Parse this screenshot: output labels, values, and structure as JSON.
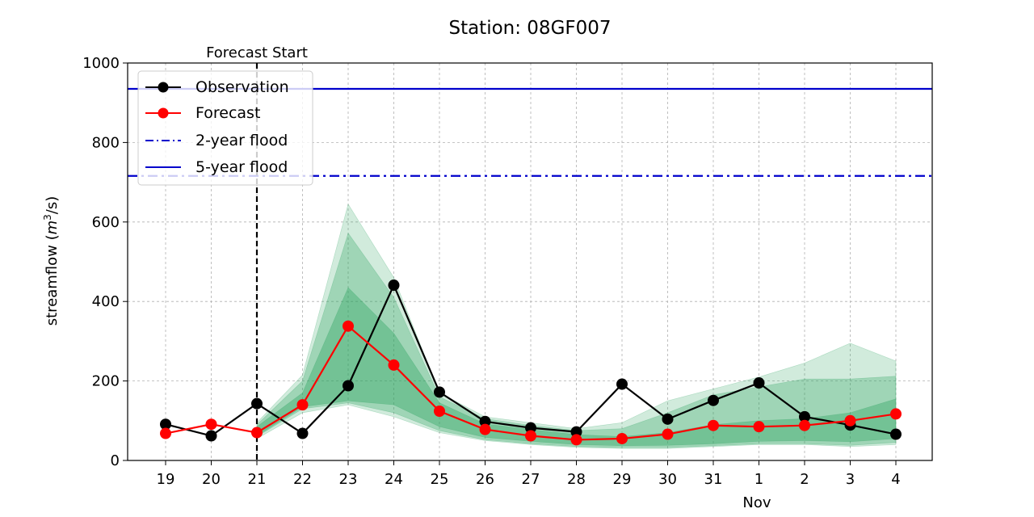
{
  "chart_data": {
    "type": "line",
    "title": "Station: 08GF007",
    "xlabel": "Nov",
    "ylabel_main": "streamflow (",
    "ylabel_unit_base": "m",
    "ylabel_unit_exp": "3",
    "ylabel_unit_tail": "/s)",
    "ylim": [
      0,
      1000
    ],
    "yticks": [
      0,
      200,
      400,
      600,
      800,
      1000
    ],
    "categories": [
      "19",
      "20",
      "21",
      "22",
      "23",
      "24",
      "25",
      "26",
      "27",
      "28",
      "29",
      "30",
      "31",
      "1",
      "2",
      "3",
      "4"
    ],
    "forecast_start_label": "Forecast Start",
    "forecast_start_index": 2,
    "grid": true,
    "legend_position": "top-left",
    "series": [
      {
        "name": "Observation",
        "color": "#000000",
        "values": [
          91,
          62,
          143,
          68,
          188,
          441,
          172,
          98,
          82,
          72,
          192,
          104,
          151,
          195,
          110,
          89,
          66
        ]
      },
      {
        "name": "Forecast",
        "color": "#ff0000",
        "values": [
          68,
          91,
          70,
          140,
          338,
          240,
          124,
          78,
          62,
          52,
          55,
          66,
          88,
          85,
          88,
          100,
          117
        ]
      }
    ],
    "reference_lines": [
      {
        "name": "2-year flood",
        "value": 716,
        "color": "#0000cc",
        "style": "dashdot"
      },
      {
        "name": "5-year flood",
        "value": 935,
        "color": "#0000cc",
        "style": "solid"
      }
    ],
    "bands": {
      "color": "#2ca25f",
      "start_index": 2,
      "ranges": [
        {
          "lower": [
            55,
            120,
            140,
            110,
            70,
            50,
            40,
            33,
            30,
            30,
            35,
            40,
            40,
            35,
            40
          ],
          "upper": [
            95,
            215,
            645,
            460,
            170,
            110,
            95,
            80,
            95,
            150,
            180,
            210,
            245,
            295,
            250
          ]
        },
        {
          "lower": [
            60,
            130,
            145,
            120,
            75,
            52,
            42,
            35,
            32,
            32,
            37,
            42,
            42,
            38,
            45
          ],
          "upper": [
            90,
            200,
            572,
            410,
            160,
            105,
            88,
            75,
            80,
            120,
            165,
            185,
            205,
            205,
            212
          ]
        },
        {
          "lower": [
            62,
            135,
            150,
            140,
            85,
            58,
            48,
            40,
            37,
            38,
            42,
            48,
            50,
            47,
            55
          ],
          "upper": [
            85,
            170,
            435,
            320,
            145,
            92,
            78,
            65,
            60,
            70,
            90,
            100,
            105,
            120,
            155
          ]
        }
      ]
    }
  }
}
